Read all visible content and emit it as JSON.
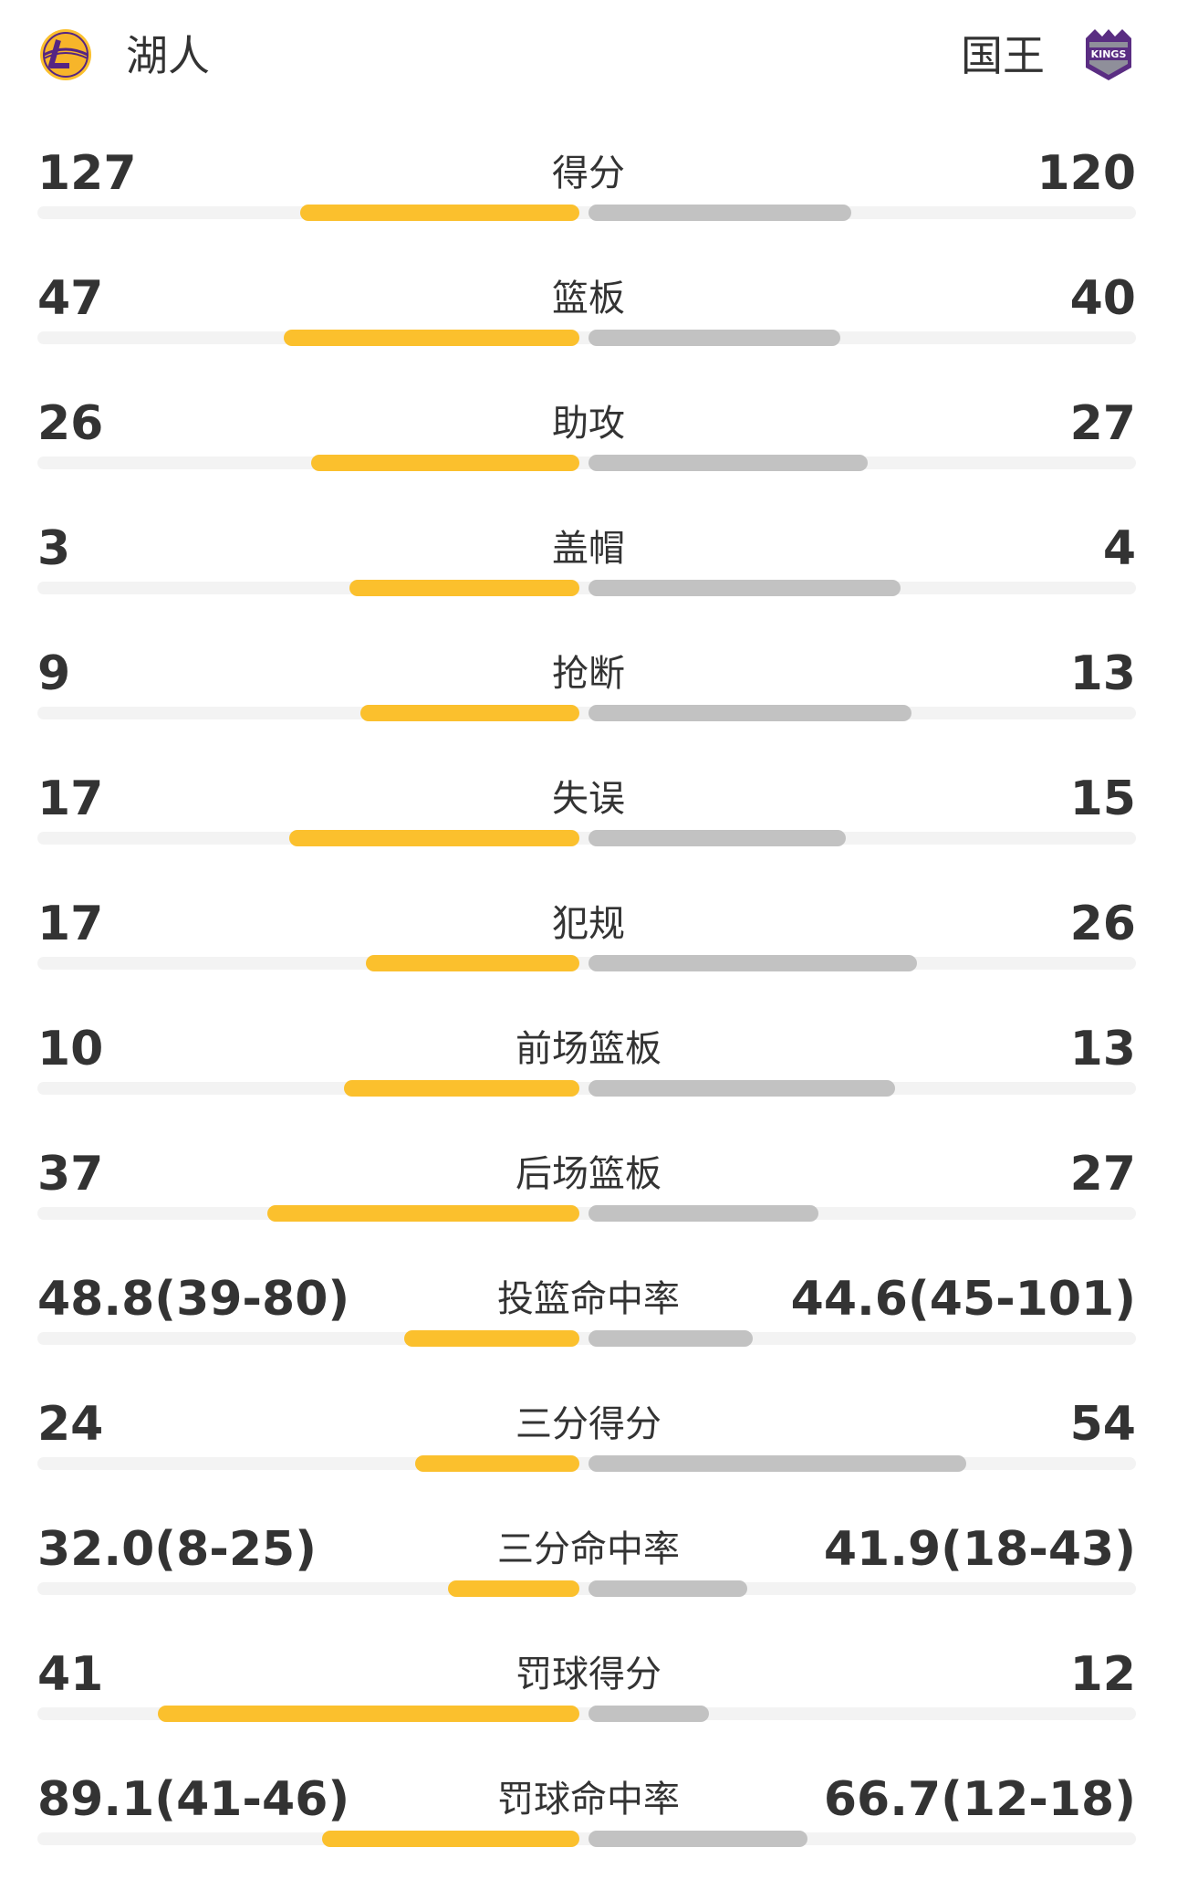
{
  "teams": {
    "home": {
      "name": "湖人",
      "logo_icon": "lakers-logo-icon",
      "color": "#fbc02d"
    },
    "away": {
      "name": "国王",
      "logo_icon": "kings-logo-icon",
      "color": "#c2c2c2"
    }
  },
  "stats": [
    {
      "label": "得分",
      "home": "127",
      "away": "120",
      "home_share": 0.51,
      "away_share": 0.48
    },
    {
      "label": "篮板",
      "home": "47",
      "away": "40",
      "home_share": 0.54,
      "away_share": 0.46
    },
    {
      "label": "助攻",
      "home": "26",
      "away": "27",
      "home_share": 0.49,
      "away_share": 0.51
    },
    {
      "label": "盖帽",
      "home": "3",
      "away": "4",
      "home_share": 0.42,
      "away_share": 0.57
    },
    {
      "label": "抢断",
      "home": "9",
      "away": "13",
      "home_share": 0.4,
      "away_share": 0.59
    },
    {
      "label": "失误",
      "home": "17",
      "away": "15",
      "home_share": 0.53,
      "away_share": 0.47
    },
    {
      "label": "犯规",
      "home": "17",
      "away": "26",
      "home_share": 0.39,
      "away_share": 0.6
    },
    {
      "label": "前场篮板",
      "home": "10",
      "away": "13",
      "home_share": 0.43,
      "away_share": 0.56
    },
    {
      "label": "后场篮板",
      "home": "37",
      "away": "27",
      "home_share": 0.57,
      "away_share": 0.42
    },
    {
      "label": "投篮命中率",
      "home": "48.8(39-80)",
      "away": "44.6(45-101)",
      "home_share": 0.32,
      "away_share": 0.3
    },
    {
      "label": "三分得分",
      "home": "24",
      "away": "54",
      "home_share": 0.3,
      "away_share": 0.69
    },
    {
      "label": "三分命中率",
      "home": "32.0(8-25)",
      "away": "41.9(18-43)",
      "home_share": 0.24,
      "away_share": 0.29
    },
    {
      "label": "罚球得分",
      "home": "41",
      "away": "12",
      "home_share": 0.77,
      "away_share": 0.22
    },
    {
      "label": "罚球命中率",
      "home": "89.1(41-46)",
      "away": "66.7(12-18)",
      "home_share": 0.47,
      "away_share": 0.4
    }
  ]
}
